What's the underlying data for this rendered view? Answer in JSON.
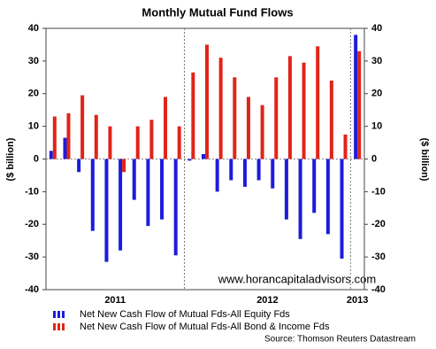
{
  "chart_data": {
    "type": "bar",
    "title": "Monthly Mutual Fund Flows",
    "ylabel": "($ billion)",
    "y2label": "($ billion)",
    "categories": [
      null,
      null,
      null,
      null,
      null,
      null,
      null,
      null,
      null,
      null,
      null,
      null,
      null,
      null,
      null,
      null,
      null,
      null,
      null,
      null,
      null,
      null,
      null
    ],
    "groups": [
      {
        "label": "2011",
        "count": 10
      },
      {
        "label": "2012",
        "count": 12
      },
      {
        "label": "2013",
        "count": 1
      }
    ],
    "series": [
      {
        "name": "Net New Cash Flow of Mutual Fds-All Equity Fds",
        "color": "#1c1cdc",
        "values": [
          2.5,
          6.5,
          -4,
          -22,
          -31.5,
          -28,
          -12.5,
          -20.5,
          -18.5,
          -29.5,
          -0.5,
          1.5,
          -10,
          -6.5,
          -8.5,
          -6.5,
          -9,
          -18.5,
          -24.5,
          -16.5,
          -23,
          -30.5,
          38
        ]
      },
      {
        "name": "Net New Cash Flow of Mutual Fds-All Bond & Income Fds",
        "color": "#e02418",
        "values": [
          13,
          14,
          19.5,
          13.5,
          10,
          -4,
          10,
          12,
          19,
          10,
          26.5,
          35,
          31,
          25,
          19,
          16.5,
          25,
          31.5,
          29.5,
          34.5,
          24,
          7.5,
          33
        ]
      }
    ],
    "ylim": [
      -40,
      40
    ],
    "yticks": [
      -40,
      -30,
      -20,
      -10,
      0,
      10,
      20,
      30,
      40
    ],
    "y2lim": [
      -40,
      40
    ],
    "y2ticks": [
      -40,
      -30,
      -20,
      -10,
      0,
      10,
      20,
      30,
      40
    ],
    "watermark": "www.horancapitaladvisors.com",
    "source": "Source: Thomson Reuters Datastream"
  }
}
